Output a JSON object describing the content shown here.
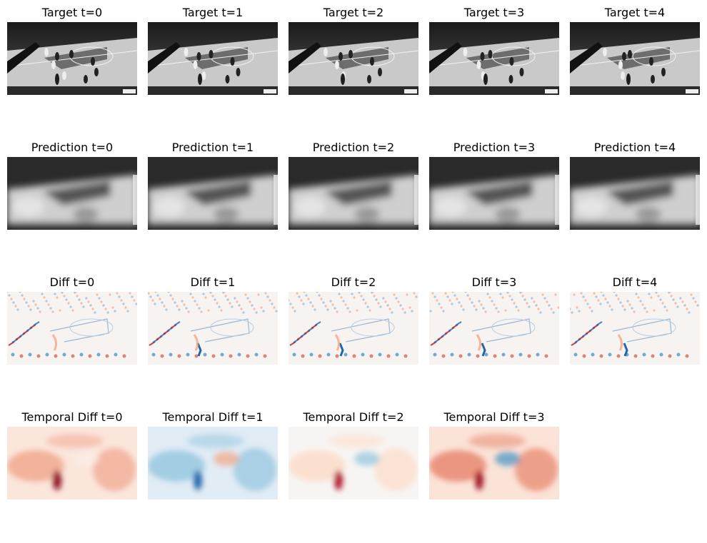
{
  "rows": [
    {
      "kind": "target",
      "titles": [
        "Target t=0",
        "Target t=1",
        "Target t=2",
        "Target t=3",
        "Target t=4"
      ]
    },
    {
      "kind": "prediction",
      "titles": [
        "Prediction t=0",
        "Prediction t=1",
        "Prediction t=2",
        "Prediction t=3",
        "Prediction t=4"
      ]
    },
    {
      "kind": "diff",
      "titles": [
        "Diff t=0",
        "Diff t=1",
        "Diff t=2",
        "Diff t=3",
        "Diff t=4"
      ]
    },
    {
      "kind": "temporal",
      "titles": [
        "Temporal Diff t=0",
        "Temporal Diff t=1",
        "Temporal Diff t=2",
        "Temporal Diff t=3"
      ],
      "tones": [
        "red",
        "blue",
        "neutral",
        "red-strong"
      ]
    }
  ],
  "colors": {
    "diverging_red": "#b2182b",
    "diverging_blue": "#2166ac",
    "neutral": "#f7f7f7"
  }
}
